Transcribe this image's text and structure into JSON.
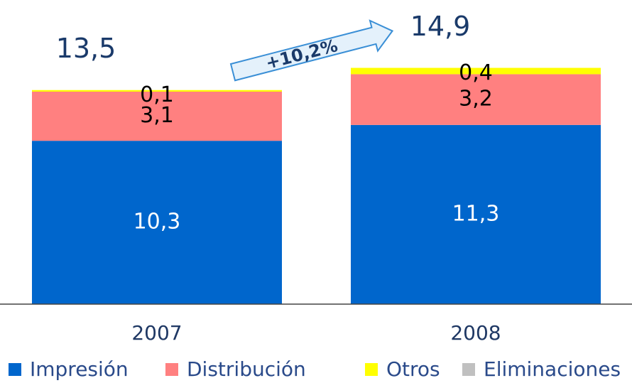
{
  "chart_data": {
    "type": "stacked_bar",
    "categories": [
      "2007",
      "2008"
    ],
    "series": [
      {
        "name": "Impresión",
        "color": "#0066cc",
        "values": [
          10.3,
          11.3
        ],
        "value_labels": [
          "10,3",
          "11,3"
        ]
      },
      {
        "name": "Distribución",
        "color": "#ff8080",
        "values": [
          3.1,
          3.2
        ],
        "value_labels": [
          "3,1",
          "3,2"
        ]
      },
      {
        "name": "Otros",
        "color": "#ffff00",
        "values": [
          0.1,
          0.4
        ],
        "value_labels": [
          "0,1",
          "0,4"
        ]
      },
      {
        "name": "Eliminaciones",
        "color": "#c0c0c0",
        "values": [
          null,
          null
        ]
      }
    ],
    "totals": {
      "values": [
        13.5,
        14.9
      ],
      "value_labels": [
        "13,5",
        "14,9"
      ]
    },
    "annotation": "+10,2%",
    "ylim": [
      0,
      19
    ]
  }
}
